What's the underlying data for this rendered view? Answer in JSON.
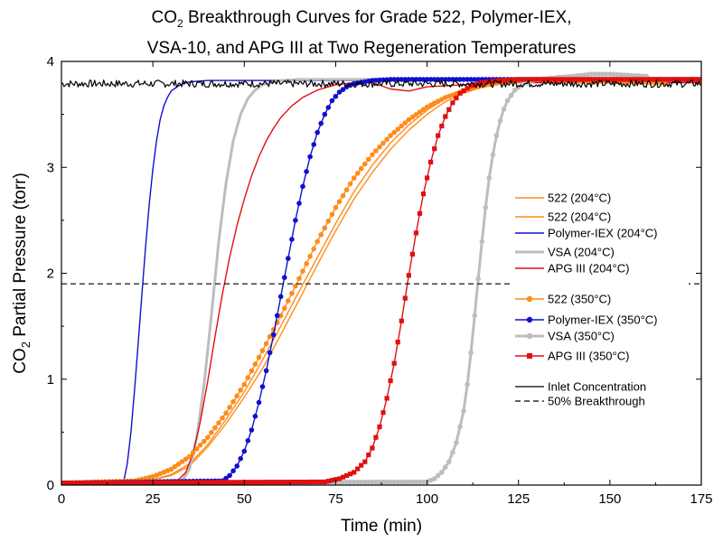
{
  "chart_data": {
    "type": "line",
    "title_parts": {
      "line1_pre": "CO",
      "line1_sub": "2",
      "line1_post": " Breakthrough Curves for Grade 522, Polymer-IEX,",
      "line2": "VSA-10, and APG III at Two Regeneration Temperatures"
    },
    "xlabel": "Time (min)",
    "ylabel_pre": "CO",
    "ylabel_sub": "2",
    "ylabel_post": " Partial Pressure (torr)",
    "xlim": [
      0,
      175
    ],
    "ylim": [
      0,
      4
    ],
    "xticks": [
      0,
      25,
      50,
      75,
      100,
      125,
      150,
      175
    ],
    "yticks": [
      0,
      1,
      2,
      3,
      4
    ],
    "grid": false,
    "legend_position": "right",
    "colors": {
      "orange": "#ff8c1a",
      "blue": "#1010d0",
      "gray": "#bdbdbd",
      "red": "#e01010",
      "black": "#000000"
    },
    "series": [
      {
        "name": "522 (204°C)",
        "color": "#ff8c1a",
        "width": 1.4,
        "marker": "none",
        "x": [
          0,
          25,
          30,
          35,
          40,
          45,
          50,
          55,
          60,
          65,
          70,
          75,
          80,
          85,
          90,
          95,
          100,
          105,
          110,
          115,
          120,
          130,
          150,
          165
        ],
        "y": [
          0.02,
          0.05,
          0.09,
          0.18,
          0.36,
          0.58,
          0.83,
          1.1,
          1.42,
          1.75,
          2.08,
          2.4,
          2.7,
          2.95,
          3.17,
          3.35,
          3.5,
          3.62,
          3.7,
          3.76,
          3.8,
          3.82,
          3.8,
          3.8
        ]
      },
      {
        "name": "522 (204°C)",
        "color": "#ff8c1a",
        "width": 1.4,
        "marker": "none",
        "x": [
          0,
          25,
          30,
          35,
          40,
          45,
          50,
          55,
          60,
          65,
          70,
          75,
          80,
          85,
          90,
          95,
          100,
          105,
          110,
          115,
          120,
          130,
          150,
          165
        ],
        "y": [
          0.02,
          0.05,
          0.1,
          0.2,
          0.38,
          0.62,
          0.88,
          1.18,
          1.5,
          1.83,
          2.15,
          2.47,
          2.77,
          3.02,
          3.23,
          3.4,
          3.54,
          3.65,
          3.72,
          3.77,
          3.8,
          3.82,
          3.8,
          3.8
        ]
      },
      {
        "name": "Polymer-IEX (204°C)",
        "color": "#1010d0",
        "width": 1.4,
        "marker": "none",
        "x": [
          0,
          17,
          18,
          19,
          20,
          21,
          22,
          23,
          24,
          25,
          26,
          27,
          28,
          29,
          30,
          32,
          34,
          36,
          40,
          175
        ],
        "y": [
          0.02,
          0.03,
          0.2,
          0.5,
          0.9,
          1.35,
          1.8,
          2.25,
          2.65,
          2.98,
          3.25,
          3.45,
          3.58,
          3.66,
          3.72,
          3.77,
          3.8,
          3.81,
          3.82,
          3.82
        ]
      },
      {
        "name": "VSA  (204°C)",
        "color": "#bdbdbd",
        "width": 3,
        "marker": "none",
        "x": [
          0,
          33,
          35,
          37,
          39,
          41,
          43,
          45,
          47,
          49,
          51,
          53,
          55,
          57,
          60,
          65,
          70,
          175
        ],
        "y": [
          0.02,
          0.04,
          0.15,
          0.45,
          0.95,
          1.6,
          2.3,
          2.85,
          3.25,
          3.5,
          3.65,
          3.73,
          3.78,
          3.8,
          3.82,
          3.83,
          3.83,
          3.83
        ]
      },
      {
        "name": "APG III (204°C)",
        "color": "#e01010",
        "width": 1.4,
        "marker": "none",
        "x": [
          0,
          32,
          34,
          36,
          38,
          40,
          42,
          44,
          46,
          48,
          50,
          52,
          54,
          56,
          58,
          60,
          63,
          66,
          70,
          75,
          80,
          85,
          90,
          95,
          100,
          110,
          120,
          175
        ],
        "y": [
          0.02,
          0.05,
          0.12,
          0.3,
          0.6,
          0.98,
          1.4,
          1.8,
          2.15,
          2.45,
          2.7,
          2.92,
          3.1,
          3.25,
          3.37,
          3.47,
          3.58,
          3.66,
          3.73,
          3.78,
          3.8,
          3.8,
          3.74,
          3.72,
          3.76,
          3.78,
          3.8,
          3.8
        ]
      },
      {
        "name": "522 (350°C)",
        "color": "#ff8c1a",
        "width": 1.4,
        "marker": "circle",
        "x": [
          0,
          20,
          25,
          30,
          35,
          40,
          45,
          50,
          55,
          60,
          65,
          70,
          75,
          80,
          85,
          90,
          95,
          100,
          105,
          110,
          115,
          120,
          125,
          130,
          140,
          150,
          165
        ],
        "y": [
          0.02,
          0.04,
          0.08,
          0.15,
          0.27,
          0.45,
          0.68,
          0.95,
          1.27,
          1.6,
          1.95,
          2.3,
          2.62,
          2.9,
          3.12,
          3.3,
          3.45,
          3.57,
          3.66,
          3.72,
          3.77,
          3.8,
          3.82,
          3.83,
          3.82,
          3.81,
          3.8
        ]
      },
      {
        "name": "Polymer-IEX (350°C)",
        "color": "#1010d0",
        "width": 1.4,
        "marker": "circle",
        "x": [
          0,
          44,
          46,
          48,
          50,
          52,
          54,
          56,
          58,
          60,
          62,
          64,
          66,
          68,
          70,
          72,
          74,
          76,
          78,
          80,
          85,
          90,
          175
        ],
        "y": [
          0.02,
          0.04,
          0.09,
          0.18,
          0.32,
          0.52,
          0.78,
          1.08,
          1.42,
          1.78,
          2.14,
          2.5,
          2.82,
          3.1,
          3.33,
          3.5,
          3.63,
          3.71,
          3.76,
          3.79,
          3.82,
          3.83,
          3.83
        ]
      },
      {
        "name": "VSA (350°C)",
        "color": "#bdbdbd",
        "width": 3,
        "marker": "circle",
        "x": [
          0,
          100,
          102,
          104,
          106,
          108,
          110,
          111,
          112,
          113,
          114,
          115,
          116,
          117,
          118,
          119,
          120,
          121,
          122,
          124,
          126,
          128,
          130,
          133,
          136,
          140,
          145,
          150,
          155,
          160
        ],
        "y": [
          0.02,
          0.03,
          0.06,
          0.12,
          0.22,
          0.4,
          0.7,
          0.95,
          1.25,
          1.6,
          1.95,
          2.3,
          2.62,
          2.9,
          3.12,
          3.3,
          3.44,
          3.55,
          3.63,
          3.73,
          3.78,
          3.81,
          3.83,
          3.84,
          3.85,
          3.86,
          3.88,
          3.88,
          3.87,
          3.86
        ]
      },
      {
        "name": "APG III (350°C)",
        "color": "#e01010",
        "width": 1.4,
        "marker": "square",
        "x": [
          0,
          72,
          76,
          80,
          83,
          85,
          87,
          89,
          91,
          93,
          95,
          97,
          99,
          101,
          103,
          105,
          107,
          109,
          112,
          115,
          120,
          125,
          175
        ],
        "y": [
          0.02,
          0.03,
          0.06,
          0.12,
          0.22,
          0.35,
          0.55,
          0.82,
          1.15,
          1.55,
          1.98,
          2.38,
          2.75,
          3.05,
          3.3,
          3.48,
          3.61,
          3.7,
          3.77,
          3.8,
          3.82,
          3.83,
          3.83
        ]
      },
      {
        "name": "Inlet Concentration",
        "color": "#000000",
        "width": 1.2,
        "marker": "none",
        "noisy": true,
        "x": [
          0,
          175
        ],
        "y": [
          3.79,
          3.79
        ]
      },
      {
        "name": "50% Breakthrough",
        "color": "#000000",
        "width": 1.2,
        "marker": "none",
        "dashed": true,
        "x": [
          0,
          175
        ],
        "y": [
          1.9,
          1.9
        ]
      }
    ]
  }
}
